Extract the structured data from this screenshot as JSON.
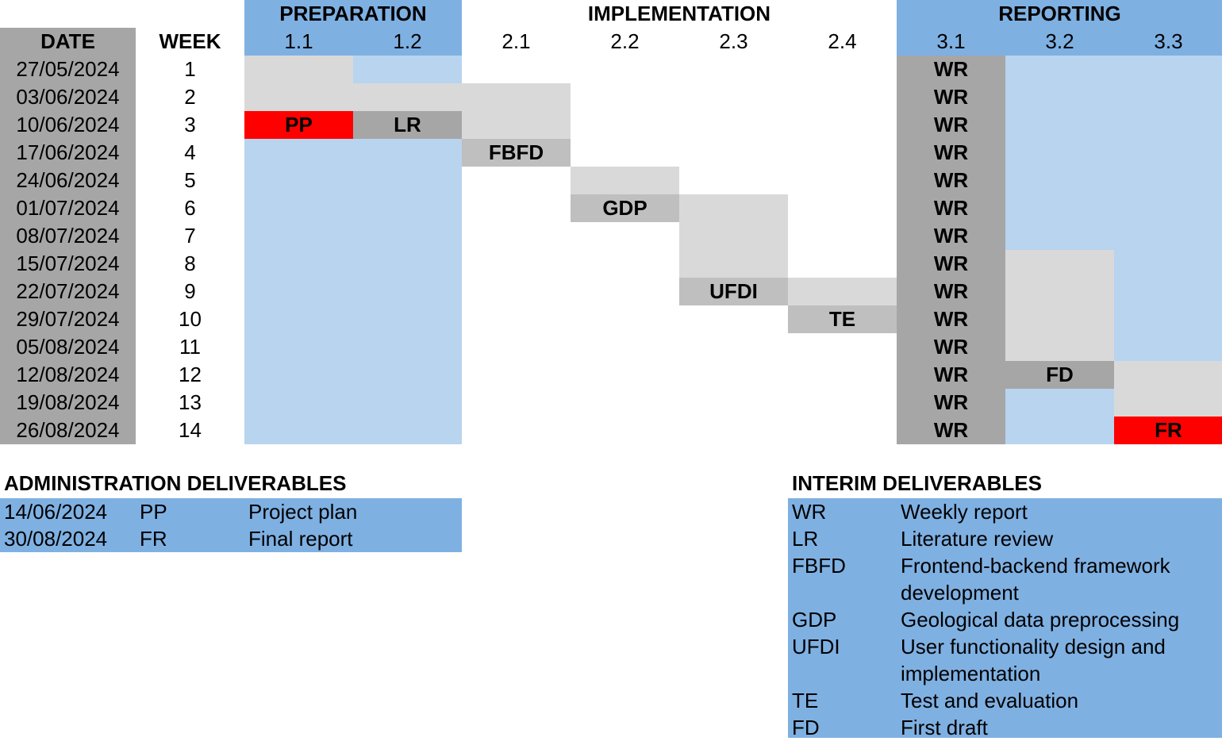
{
  "chart_data": {
    "type": "table",
    "header": {
      "date_label": "DATE",
      "week_label": "WEEK",
      "groups": [
        {
          "name": "PREPARATION",
          "tasks": [
            "1.1",
            "1.2"
          ]
        },
        {
          "name": "IMPLEMENTATION",
          "tasks": [
            "2.1",
            "2.2",
            "2.3",
            "2.4"
          ]
        },
        {
          "name": "REPORTING",
          "tasks": [
            "3.1",
            "3.2",
            "3.3"
          ]
        }
      ]
    },
    "rows": [
      {
        "date": "27/05/2024",
        "week": "1"
      },
      {
        "date": "03/06/2024",
        "week": "2"
      },
      {
        "date": "10/06/2024",
        "week": "3"
      },
      {
        "date": "17/06/2024",
        "week": "4"
      },
      {
        "date": "24/06/2024",
        "week": "5"
      },
      {
        "date": "01/07/2024",
        "week": "6"
      },
      {
        "date": "08/07/2024",
        "week": "7"
      },
      {
        "date": "15/07/2024",
        "week": "8"
      },
      {
        "date": "22/07/2024",
        "week": "9"
      },
      {
        "date": "29/07/2024",
        "week": "10"
      },
      {
        "date": "05/08/2024",
        "week": "11"
      },
      {
        "date": "12/08/2024",
        "week": "12"
      },
      {
        "date": "19/08/2024",
        "week": "13"
      },
      {
        "date": "26/08/2024",
        "week": "14"
      }
    ],
    "tasks": [
      {
        "task": "1.1",
        "active_weeks": [
          1,
          2,
          3
        ],
        "deliverable": "PP",
        "deliverable_week": 3,
        "deliverable_type": "administration",
        "background": "planning_area"
      },
      {
        "task": "1.2",
        "active_weeks": [
          2,
          3
        ],
        "deliverable": "LR",
        "deliverable_week": 3,
        "deliverable_type": "interim",
        "background": "planning_area"
      },
      {
        "task": "2.1",
        "active_weeks": [
          2,
          3,
          4
        ],
        "deliverable": "FBFD",
        "deliverable_week": 4,
        "deliverable_type": "interim"
      },
      {
        "task": "2.2",
        "active_weeks": [
          5,
          6
        ],
        "deliverable": "GDP",
        "deliverable_week": 6,
        "deliverable_type": "interim"
      },
      {
        "task": "2.3",
        "active_weeks": [
          6,
          7,
          8,
          9
        ],
        "deliverable": "UFDI",
        "deliverable_week": 9,
        "deliverable_type": "interim"
      },
      {
        "task": "2.4",
        "active_weeks": [
          9,
          10
        ],
        "deliverable": "TE",
        "deliverable_week": 10,
        "deliverable_type": "interim"
      },
      {
        "task": "3.1",
        "active_weeks": [
          1,
          2,
          3,
          4,
          5,
          6,
          7,
          8,
          9,
          10,
          11,
          12,
          13,
          14
        ],
        "deliverable": "WR",
        "deliverable_weeks": [
          1,
          2,
          3,
          4,
          5,
          6,
          7,
          8,
          9,
          10,
          11,
          12,
          13,
          14
        ],
        "deliverable_type": "interim",
        "background": "planning_area"
      },
      {
        "task": "3.2",
        "active_weeks": [
          8,
          9,
          10,
          11,
          12
        ],
        "deliverable": "FD",
        "deliverable_week": 12,
        "deliverable_type": "interim",
        "background": "planning_area"
      },
      {
        "task": "3.3",
        "active_weeks": [
          12,
          13,
          14
        ],
        "deliverable": "FR",
        "deliverable_week": 14,
        "deliverable_type": "administration",
        "background": "planning_area"
      }
    ],
    "colors": {
      "group_header": "#7fb0e2",
      "planning_area": "#b8d4ef",
      "active": "#d9d9d9",
      "deliverable_interim": "#bfbfbf",
      "deliverable_dark": "#a6a6a6",
      "deliverable_admin": "#ff0000",
      "date_column": "#a6a6a6",
      "weekly_column": "#a6a6a6"
    }
  },
  "administration_deliverables": {
    "title": "ADMINISTRATION DELIVERABLES",
    "items": [
      {
        "date": "14/06/2024",
        "code": "PP",
        "name": "Project plan"
      },
      {
        "date": "30/08/2024",
        "code": "FR",
        "name": "Final report"
      }
    ]
  },
  "interim_deliverables": {
    "title": "INTERIM DELIVERABLES",
    "items": [
      {
        "code": "WR",
        "name": "Weekly report",
        "name2": ""
      },
      {
        "code": "LR",
        "name": "Literature review",
        "name2": ""
      },
      {
        "code": "FBFD",
        "name": "Frontend-backend framework",
        "name2": "development"
      },
      {
        "code": "GDP",
        "name": "Geological data preprocessing",
        "name2": ""
      },
      {
        "code": "UFDI",
        "name": "User functionality design and",
        "name2": "implementation"
      },
      {
        "code": "TE",
        "name": "Test and evaluation",
        "name2": ""
      },
      {
        "code": "FD",
        "name": "First draft",
        "name2": ""
      }
    ]
  }
}
